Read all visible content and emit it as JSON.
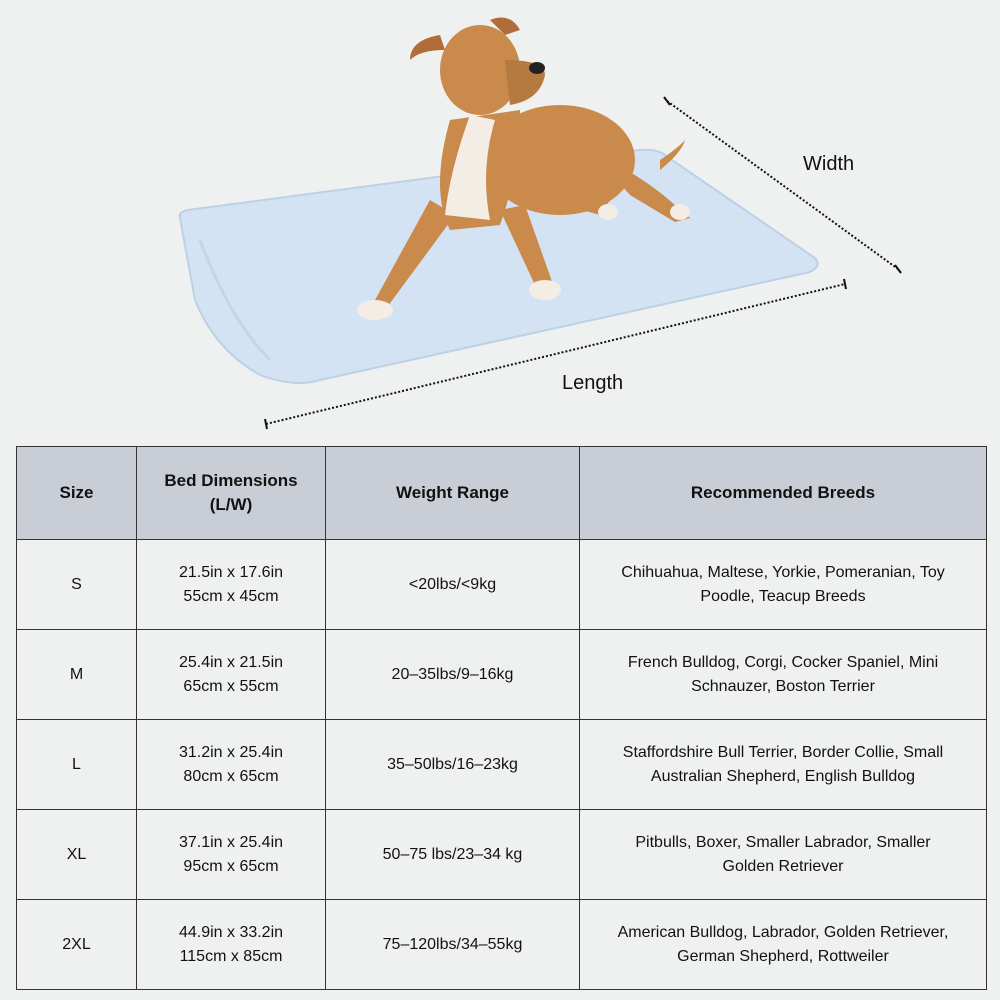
{
  "illustration": {
    "width_label": "Width",
    "length_label": "Length",
    "mat_color": "#d3e3f4",
    "dog_color": "#c98a4b"
  },
  "table": {
    "header_bg": "#c9ced6",
    "headers": [
      "Size",
      [
        "Bed Dimensions",
        "(L/W)"
      ],
      "Weight Range",
      "Recommended Breeds"
    ],
    "rows": [
      {
        "size": "S",
        "dims": [
          "21.5in x 17.6in",
          "55cm x 45cm"
        ],
        "weight": "<20lbs/<9kg",
        "breeds": [
          "Chihuahua, Maltese, Yorkie, Pomeranian, Toy",
          "Poodle, Teacup Breeds"
        ]
      },
      {
        "size": "M",
        "dims": [
          "25.4in x 21.5in",
          "65cm x 55cm"
        ],
        "weight": "20–35lbs/9–16kg",
        "breeds": [
          "French Bulldog, Corgi, Cocker Spaniel, Mini",
          "Schnauzer, Boston Terrier"
        ]
      },
      {
        "size": "L",
        "dims": [
          "31.2in x 25.4in",
          "80cm x 65cm"
        ],
        "weight": "35–50lbs/16–23kg",
        "breeds": [
          "Staffordshire Bull Terrier, Border Collie, Small",
          "Australian Shepherd, English Bulldog"
        ]
      },
      {
        "size": "XL",
        "dims": [
          "37.1in x 25.4in",
          "95cm x 65cm"
        ],
        "weight": "50–75 lbs/23–34 kg",
        "breeds": [
          "Pitbulls, Boxer, Smaller Labrador, Smaller",
          "Golden Retriever"
        ]
      },
      {
        "size": "2XL",
        "dims": [
          "44.9in x 33.2in",
          "115cm x 85cm"
        ],
        "weight": "75–120lbs/34–55kg",
        "breeds": [
          "American Bulldog, Labrador, Golden Retriever,",
          "German Shepherd, Rottweiler"
        ]
      }
    ]
  }
}
